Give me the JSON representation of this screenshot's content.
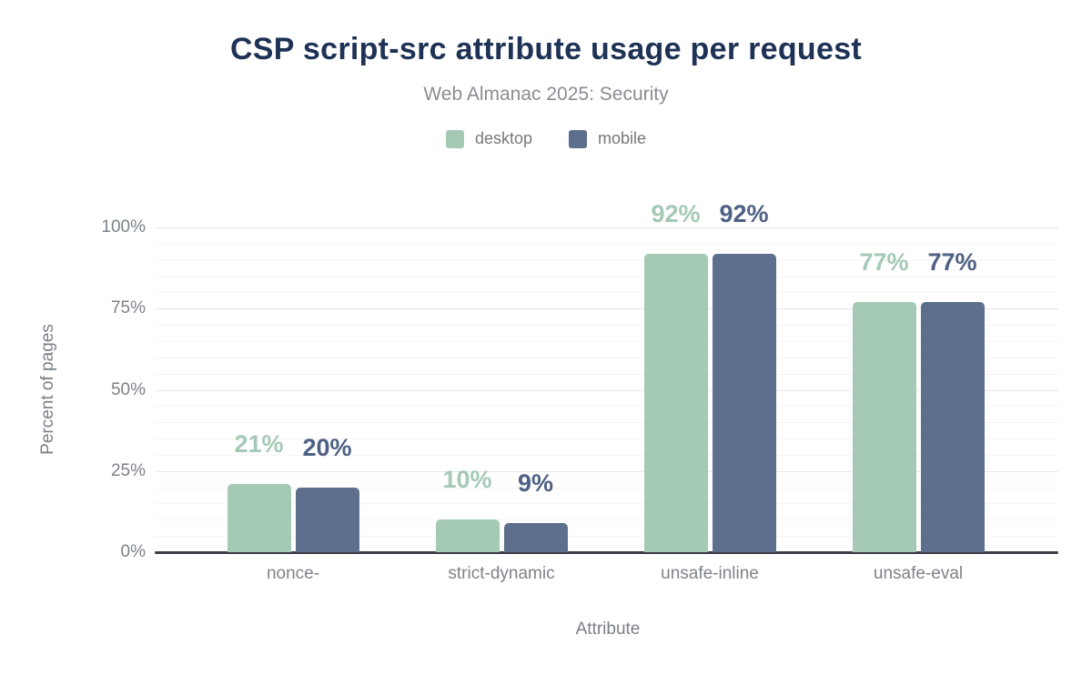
{
  "header": {
    "title": "CSP script-src attribute usage per request",
    "subtitle": "Web Almanac 2025: Security"
  },
  "chart_data": {
    "type": "bar",
    "title": "CSP script-src attribute usage per request",
    "subtitle": "Web Almanac 2025: Security",
    "categories": [
      "nonce-",
      "strict-dynamic",
      "unsafe-inline",
      "unsafe-eval"
    ],
    "series": [
      {
        "name": "desktop",
        "color": "#a4c9b5",
        "label_color": "#a4c9b5",
        "values": [
          21,
          10,
          92,
          77
        ]
      },
      {
        "name": "mobile",
        "color": "#5d6f8c",
        "label_color": "#4e6084",
        "values": [
          20,
          9,
          92,
          77
        ]
      }
    ],
    "value_suffix": "%",
    "xlabel": "Attribute",
    "ylabel": "Percent of pages",
    "ylim": [
      0,
      100
    ],
    "yticks": [
      0,
      25,
      50,
      75,
      100
    ],
    "minor_grid_step": 5,
    "grid": true,
    "legend_position": "top"
  }
}
